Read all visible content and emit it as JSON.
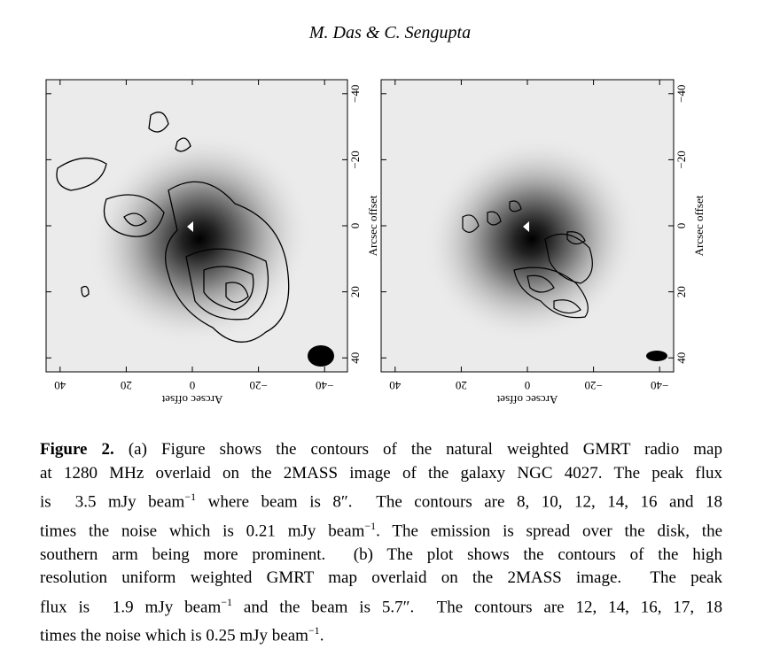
{
  "header": "M. Das & C. Sengupta",
  "figure": {
    "panels": [
      {
        "x_label": "Arcsec offset",
        "y_label": "Arcsec offset",
        "x_ticks": [
          {
            "value": 40,
            "label": "40"
          },
          {
            "value": 20,
            "label": "20"
          },
          {
            "value": 0,
            "label": "0"
          },
          {
            "value": -20,
            "label": "−20"
          },
          {
            "value": -40,
            "label": "−40"
          }
        ],
        "y_ticks": [
          {
            "value": -40,
            "label": "−40"
          },
          {
            "value": -20,
            "label": "−20"
          },
          {
            "value": 0,
            "label": "0"
          },
          {
            "value": 20,
            "label": "20"
          },
          {
            "value": 40,
            "label": "40"
          }
        ]
      },
      {
        "x_label": "Arcsec offset",
        "y_label": "Arcsec offset",
        "x_ticks": [
          {
            "value": 40,
            "label": "40"
          },
          {
            "value": 20,
            "label": "20"
          },
          {
            "value": 0,
            "label": "0"
          },
          {
            "value": -20,
            "label": "−20"
          },
          {
            "value": -40,
            "label": "−40"
          }
        ],
        "y_ticks": [
          {
            "value": -40,
            "label": "−40"
          },
          {
            "value": -20,
            "label": "−20"
          },
          {
            "value": 0,
            "label": "0"
          },
          {
            "value": 20,
            "label": "20"
          },
          {
            "value": 40,
            "label": "40"
          }
        ]
      }
    ]
  },
  "caption": {
    "label": "Figure 2.",
    "lines": [
      [
        " (a) Figure shows the contours of the natural weighted GMRT radio map"
      ],
      [
        "at 1280 MHz overlaid on the 2MASS image of the galaxy NGC 4027. The peak flux"
      ],
      [
        "is  3.5 mJy beam",
        {
          "sup": "−1"
        },
        " where beam is 8″.  The contours are 8, 10, 12, 14, 16 and 18"
      ],
      [
        "times the noise which is 0.21 mJy beam",
        {
          "sup": "−1"
        },
        ". The emission is spread over the disk, the"
      ],
      [
        "southern arm being more prominent.  (b) The plot shows the contours of the high"
      ],
      [
        "resolution uniform weighted GMRT map overlaid on the 2MASS image.  The peak"
      ],
      [
        "flux is  1.9 mJy beam",
        {
          "sup": "−1"
        },
        " and the beam is 5.7″.  The contours are 12, 14, 16, 17, 18"
      ],
      [
        "times the noise which is 0.25 mJy beam",
        {
          "sup": "−1"
        },
        "."
      ]
    ]
  }
}
